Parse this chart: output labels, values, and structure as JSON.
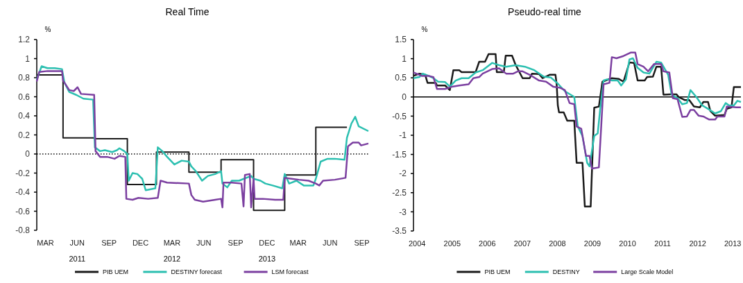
{
  "chart_data": [
    {
      "type": "line",
      "title": "Real Time",
      "ylabel": "%",
      "xlim": [
        "2011-02-18",
        "2013-10-04"
      ],
      "xticks": [
        {
          "value": "2011-03-15",
          "label": "MAR"
        },
        {
          "value": "2011-06-15",
          "label": "JUN"
        },
        {
          "value": "2011-09-15",
          "label": "SEP"
        },
        {
          "value": "2011-12-15",
          "label": "DEC"
        },
        {
          "value": "2012-03-15",
          "label": "MAR"
        },
        {
          "value": "2012-06-15",
          "label": "JUN"
        },
        {
          "value": "2012-09-15",
          "label": "SEP"
        },
        {
          "value": "2012-12-15",
          "label": "DEC"
        },
        {
          "value": "2013-03-15",
          "label": "MAR"
        },
        {
          "value": "2013-06-15",
          "label": "JUN"
        },
        {
          "value": "2013-09-15",
          "label": "SEP"
        }
      ],
      "ylim": [
        -0.8,
        1.2
      ],
      "yticks": [
        -0.8,
        -0.6,
        -0.4,
        -0.2,
        0,
        0.2,
        0.4,
        0.6,
        0.8,
        1,
        1.2
      ],
      "grid": false,
      "legend": "bottom",
      "annotations": [
        "2011",
        "2012",
        "2013"
      ],
      "ref_lines": [
        {
          "axis": "y",
          "value": 0,
          "color": "#000000",
          "line_style": "dotted"
        }
      ],
      "series": [
        {
          "name": "PIB UEM",
          "type": "step",
          "color": "#1a1a1a",
          "x": [
            "2011-02-18",
            "2011-05-05",
            "2011-08-03",
            "2011-11-07",
            "2012-01-30",
            "2012-05-03",
            "2012-08-04",
            "2012-11-06",
            "2013-02-04",
            "2013-05-05",
            "2013-08-03"
          ],
          "values": [
            0.83,
            0.17,
            0.16,
            -0.32,
            0.02,
            -0.19,
            -0.06,
            -0.59,
            -0.22,
            0.28,
            0.28
          ]
        },
        {
          "name": "DESTINY forecast",
          "color": "#2bbfb0",
          "x": [
            "2011-02-18",
            "2011-03-04",
            "2011-03-21",
            "2011-04-11",
            "2011-05-02",
            "2011-05-09",
            "2011-05-23",
            "2011-06-12",
            "2011-07-03",
            "2011-07-31",
            "2011-08-05",
            "2011-08-20",
            "2011-09-03",
            "2011-09-24",
            "2011-10-08",
            "2011-10-15",
            "2011-10-29",
            "2011-11-07",
            "2011-11-11",
            "2011-11-22",
            "2011-12-06",
            "2011-12-20",
            "2011-12-30",
            "2012-01-27",
            "2012-02-03",
            "2012-02-16",
            "2012-03-01",
            "2012-03-22",
            "2012-04-12",
            "2012-05-03",
            "2012-05-10",
            "2012-05-23",
            "2012-06-10",
            "2012-06-27",
            "2012-07-18",
            "2012-08-04",
            "2012-08-08",
            "2012-08-22",
            "2012-09-04",
            "2012-09-25",
            "2012-10-09",
            "2012-10-30",
            "2012-11-06",
            "2012-11-26",
            "2012-12-10",
            "2012-12-31",
            "2013-01-28",
            "2013-02-04",
            "2013-02-17",
            "2013-03-10",
            "2013-03-31",
            "2013-04-28",
            "2013-05-05",
            "2013-05-19",
            "2013-06-08",
            "2013-06-29",
            "2013-07-27",
            "2013-08-03",
            "2013-08-16",
            "2013-08-27",
            "2013-09-06",
            "2013-10-04"
          ],
          "values": [
            0.78,
            0.92,
            0.9,
            0.9,
            0.89,
            0.75,
            0.65,
            0.62,
            0.58,
            0.57,
            0.07,
            0.03,
            0.04,
            0.02,
            0.04,
            0.06,
            0.03,
            0,
            -0.28,
            -0.2,
            -0.21,
            -0.26,
            -0.38,
            -0.36,
            0.07,
            0.03,
            -0.03,
            -0.11,
            -0.07,
            -0.08,
            -0.13,
            -0.18,
            -0.28,
            -0.23,
            -0.21,
            -0.18,
            -0.31,
            -0.35,
            -0.28,
            -0.28,
            -0.26,
            -0.23,
            -0.26,
            -0.28,
            -0.31,
            -0.33,
            -0.36,
            -0.21,
            -0.31,
            -0.28,
            -0.33,
            -0.33,
            -0.26,
            -0.08,
            -0.05,
            -0.05,
            -0.06,
            0.17,
            0.32,
            0.39,
            0.29,
            0.24
          ]
        },
        {
          "name": "LSM forecast",
          "color": "#7b3fa0",
          "x": [
            "2011-02-18",
            "2011-02-25",
            "2011-03-21",
            "2011-05-02",
            "2011-05-05",
            "2011-05-23",
            "2011-06-05",
            "2011-06-16",
            "2011-06-26",
            "2011-08-03",
            "2011-08-07",
            "2011-08-20",
            "2011-09-10",
            "2011-10-01",
            "2011-10-15",
            "2011-11-01",
            "2011-11-04",
            "2011-11-22",
            "2011-12-09",
            "2012-01-06",
            "2012-02-03",
            "2012-02-11",
            "2012-03-01",
            "2012-05-03",
            "2012-05-10",
            "2012-05-20",
            "2012-06-13",
            "2012-07-18",
            "2012-08-04",
            "2012-08-08",
            "2012-08-11",
            "2012-09-04",
            "2012-10-02",
            "2012-10-08",
            "2012-10-12",
            "2012-10-26",
            "2012-10-30",
            "2012-11-06",
            "2012-11-09",
            "2012-12-03",
            "2013-01-07",
            "2013-01-31",
            "2013-02-04",
            "2013-02-24",
            "2013-03-17",
            "2013-04-14",
            "2013-05-05",
            "2013-05-15",
            "2013-05-26",
            "2013-06-29",
            "2013-07-30",
            "2013-08-06",
            "2013-08-20",
            "2013-09-06",
            "2013-09-13",
            "2013-10-04"
          ],
          "values": [
            0.76,
            0.86,
            0.87,
            0.87,
            0.77,
            0.67,
            0.66,
            0.7,
            0.63,
            0.62,
            0.03,
            -0.03,
            -0.03,
            -0.05,
            -0.02,
            -0.03,
            -0.47,
            -0.48,
            -0.46,
            -0.47,
            -0.46,
            -0.28,
            -0.3,
            -0.31,
            -0.43,
            -0.48,
            -0.5,
            -0.48,
            -0.47,
            -0.56,
            -0.3,
            -0.3,
            -0.31,
            -0.55,
            -0.22,
            -0.21,
            -0.56,
            -0.26,
            -0.47,
            -0.47,
            -0.48,
            -0.48,
            -0.25,
            -0.26,
            -0.27,
            -0.28,
            -0.31,
            -0.33,
            -0.28,
            -0.27,
            -0.25,
            0.08,
            0.12,
            0.12,
            0.09,
            0.11
          ]
        }
      ]
    },
    {
      "type": "line",
      "title": "Pseudo-real time",
      "ylabel": "%",
      "xlim": [
        2003.896,
        2013.233
      ],
      "xticks": [
        2004,
        2005,
        2006,
        2007,
        2008,
        2009,
        2010,
        2011,
        2012,
        2013
      ],
      "ylim": [
        -3.5,
        1.5
      ],
      "yticks": [
        -3.5,
        -3,
        -2.5,
        -2,
        -1.5,
        -1,
        -0.5,
        0,
        0.5,
        1,
        1.5
      ],
      "grid": false,
      "legend": "bottom",
      "ref_lines": [
        {
          "axis": "y",
          "value": 0,
          "color": "#000000",
          "line_style": "solid"
        }
      ],
      "series": [
        {
          "name": "PIB UEM",
          "color": "#1a1a1a",
          "x": [
            2003.896,
            2004.063,
            2004.23,
            2004.297,
            2004.531,
            2004.565,
            2004.799,
            2004.933,
            2005.033,
            2005.201,
            2005.268,
            2005.669,
            2005.77,
            2005.937,
            2006.037,
            2006.238,
            2006.272,
            2006.473,
            2006.526,
            2006.707,
            2006.807,
            2007.008,
            2007.209,
            2007.276,
            2007.477,
            2007.577,
            2007.778,
            2007.945,
            2007.979,
            2008.012,
            2008.046,
            2008.179,
            2008.28,
            2008.481,
            2008.548,
            2008.715,
            2008.782,
            2008.949,
            2009.05,
            2009.183,
            2009.284,
            2009.552,
            2009.752,
            2009.886,
            2010.054,
            2010.187,
            2010.288,
            2010.489,
            2010.556,
            2010.723,
            2010.823,
            2010.957,
            2011.024,
            2011.225,
            2011.392,
            2011.459,
            2011.627,
            2011.76,
            2011.894,
            2012.062,
            2012.162,
            2012.296,
            2012.363,
            2012.497,
            2012.764,
            2012.831,
            2012.965,
            2013.032,
            2013.233
          ],
          "values": [
            0.55,
            0.61,
            0.58,
            0.37,
            0.37,
            0.3,
            0.3,
            0.18,
            0.7,
            0.7,
            0.65,
            0.65,
            0.92,
            0.92,
            1.12,
            1.12,
            0.65,
            0.65,
            1.08,
            1.08,
            0.84,
            0.49,
            0.49,
            0.61,
            0.6,
            0.49,
            0.58,
            0.58,
            0.33,
            -0.22,
            -0.4,
            -0.4,
            -0.62,
            -0.62,
            -1.72,
            -1.72,
            -2.86,
            -2.86,
            -0.28,
            -0.25,
            0.4,
            0.49,
            0.47,
            0.4,
            0.9,
            0.89,
            0.43,
            0.43,
            0.52,
            0.53,
            0.79,
            0.79,
            0.06,
            0.07,
            0.07,
            0,
            -0.08,
            -0.08,
            -0.25,
            -0.27,
            -0.13,
            -0.13,
            -0.37,
            -0.49,
            -0.47,
            -0.31,
            -0.27,
            0.26,
            0.26
          ]
        },
        {
          "name": "DESTINY",
          "color": "#2bbfb0",
          "x": [
            2003.896,
            2004.063,
            2004.163,
            2004.331,
            2004.465,
            2004.598,
            2004.799,
            2004.933,
            2005.1,
            2005.268,
            2005.469,
            2005.669,
            2005.87,
            2006.138,
            2006.339,
            2006.539,
            2006.807,
            2007.075,
            2007.343,
            2007.61,
            2007.811,
            2008.012,
            2008.213,
            2008.481,
            2008.581,
            2008.715,
            2008.849,
            2008.916,
            2009.05,
            2009.15,
            2009.217,
            2009.317,
            2009.418,
            2009.552,
            2009.719,
            2009.819,
            2009.953,
            2010.054,
            2010.154,
            2010.288,
            2010.455,
            2010.622,
            2010.823,
            2010.957,
            2011.158,
            2011.258,
            2011.426,
            2011.56,
            2011.693,
            2011.794,
            2011.961,
            2012.129,
            2012.296,
            2012.497,
            2012.664,
            2012.798,
            2012.898,
            2013.032,
            2013.133,
            2013.233
          ],
          "values": [
            0.49,
            0.52,
            0.61,
            0.55,
            0.49,
            0.4,
            0.39,
            0.27,
            0.43,
            0.49,
            0.49,
            0.64,
            0.7,
            0.89,
            0.83,
            0.79,
            0.83,
            0.79,
            0.7,
            0.53,
            0.51,
            0.35,
            0.15,
            0,
            -0.77,
            -1.02,
            -1.72,
            -1.81,
            -1.02,
            -0.95,
            -0.34,
            0.43,
            0.46,
            0.43,
            0.43,
            0.3,
            0.46,
            0.98,
            1.01,
            0.76,
            0.64,
            0.61,
            0.92,
            0.9,
            0.58,
            0.06,
            -0.03,
            -0.19,
            -0.16,
            0.18,
            0,
            -0.22,
            -0.31,
            -0.43,
            -0.37,
            -0.16,
            -0.22,
            -0.22,
            -0.1,
            -0.13
          ]
        },
        {
          "name": "Large Scale Model",
          "color": "#7b3fa0",
          "x": [
            2003.896,
            2004.13,
            2004.331,
            2004.465,
            2004.565,
            2004.799,
            2005.0,
            2005.201,
            2005.469,
            2005.602,
            2005.77,
            2005.87,
            2006.138,
            2006.339,
            2006.539,
            2006.74,
            2006.874,
            2007.008,
            2007.209,
            2007.477,
            2007.677,
            2007.878,
            2008.079,
            2008.213,
            2008.347,
            2008.481,
            2008.548,
            2008.681,
            2008.815,
            2008.916,
            2008.983,
            2009.183,
            2009.317,
            2009.485,
            2009.552,
            2009.685,
            2009.886,
            2010.087,
            2010.221,
            2010.288,
            2010.455,
            2010.589,
            2010.756,
            2010.957,
            2011.024,
            2011.191,
            2011.292,
            2011.426,
            2011.56,
            2011.693,
            2011.794,
            2011.894,
            2012.028,
            2012.162,
            2012.329,
            2012.497,
            2012.564,
            2012.764,
            2012.831,
            2013.099,
            2013.233
          ],
          "values": [
            0.64,
            0.55,
            0.55,
            0.52,
            0.21,
            0.21,
            0.27,
            0.3,
            0.33,
            0.49,
            0.52,
            0.61,
            0.73,
            0.75,
            0.61,
            0.61,
            0.67,
            0.67,
            0.58,
            0.43,
            0.4,
            0.27,
            0.24,
            0.18,
            -0.16,
            -0.19,
            -0.77,
            -0.83,
            -1.54,
            -1.54,
            -1.87,
            -1.84,
            0.33,
            0.37,
            1.04,
            1.01,
            1.07,
            1.16,
            1.16,
            0.86,
            0.79,
            0.67,
            0.86,
            0.86,
            0.67,
            0.64,
            -0.03,
            -0.06,
            -0.52,
            -0.51,
            -0.34,
            -0.34,
            -0.49,
            -0.51,
            -0.59,
            -0.59,
            -0.51,
            -0.51,
            -0.25,
            -0.27,
            -0.27
          ]
        }
      ]
    }
  ]
}
